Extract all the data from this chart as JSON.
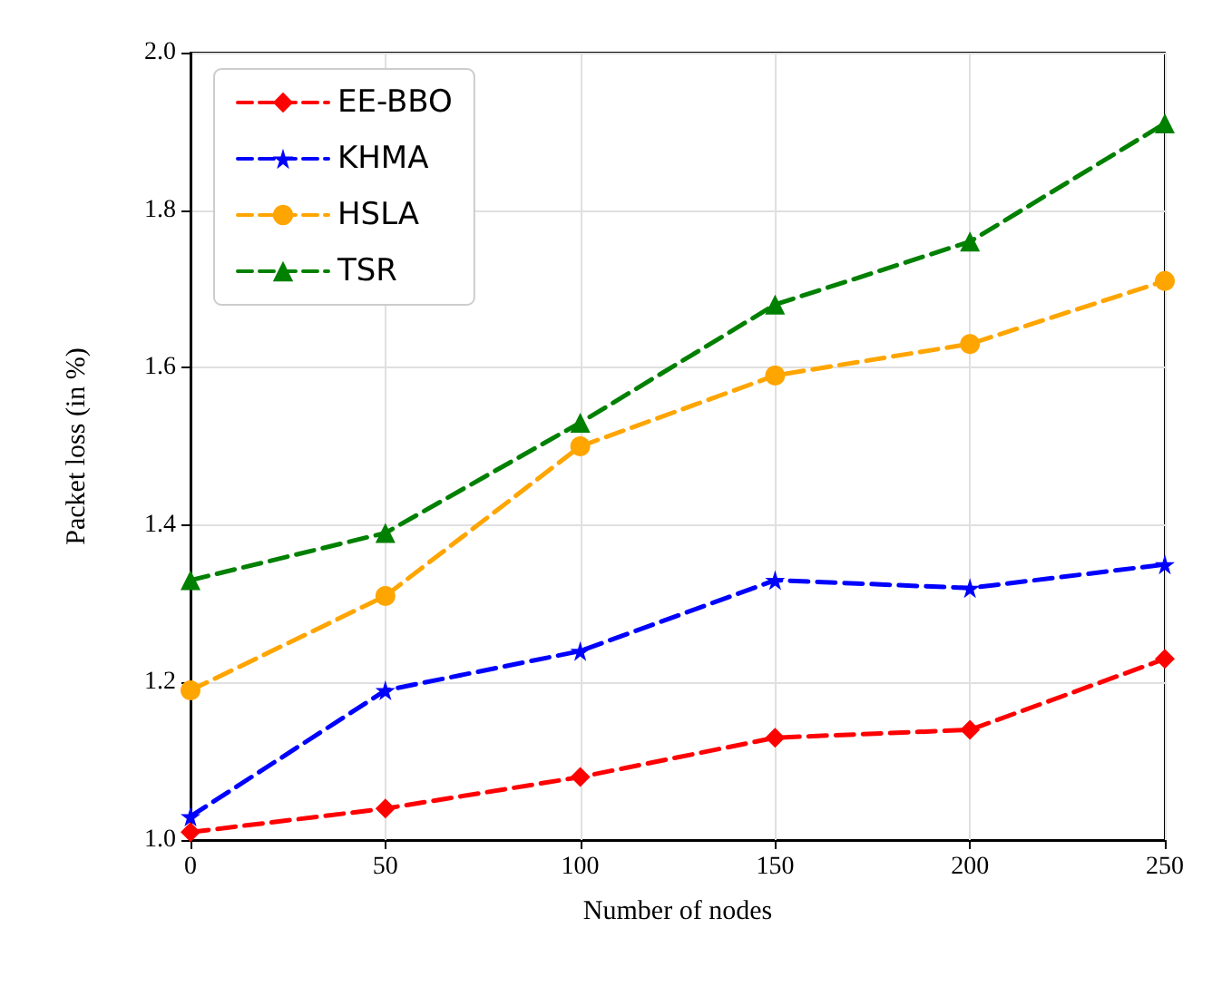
{
  "chart_data": {
    "type": "line",
    "xlabel": "Number of nodes",
    "ylabel": "Packet loss (in %)",
    "x": [
      0,
      50,
      100,
      150,
      200,
      250
    ],
    "series": [
      {
        "name": "EE-BBO",
        "color": "#ff0000",
        "marker": "diamond",
        "values": [
          1.01,
          1.04,
          1.08,
          1.13,
          1.14,
          1.23
        ]
      },
      {
        "name": "KHMA",
        "color": "#0000ff",
        "marker": "star",
        "values": [
          1.03,
          1.19,
          1.24,
          1.33,
          1.32,
          1.35
        ]
      },
      {
        "name": "HSLA",
        "color": "#ffa500",
        "marker": "circle",
        "values": [
          1.19,
          1.31,
          1.5,
          1.59,
          1.63,
          1.71
        ]
      },
      {
        "name": "TSR",
        "color": "#008000",
        "marker": "triangle",
        "values": [
          1.33,
          1.39,
          1.53,
          1.68,
          1.76,
          1.91
        ]
      }
    ],
    "xlim": [
      0,
      250
    ],
    "xticks": [
      0,
      50,
      100,
      150,
      200,
      250
    ],
    "ylim": [
      1.0,
      2.0
    ],
    "yticks": [
      {
        "value": 1.0,
        "label": "1.0"
      },
      {
        "value": 1.2,
        "label": "1.2"
      },
      {
        "value": 1.4,
        "label": "1.4"
      },
      {
        "value": 1.6,
        "label": "1.6"
      },
      {
        "value": 1.8,
        "label": "1.8"
      },
      {
        "value": 2.0,
        "label": "2.0"
      }
    ],
    "grid": true,
    "legend": "top left",
    "line_style": "dashed"
  }
}
